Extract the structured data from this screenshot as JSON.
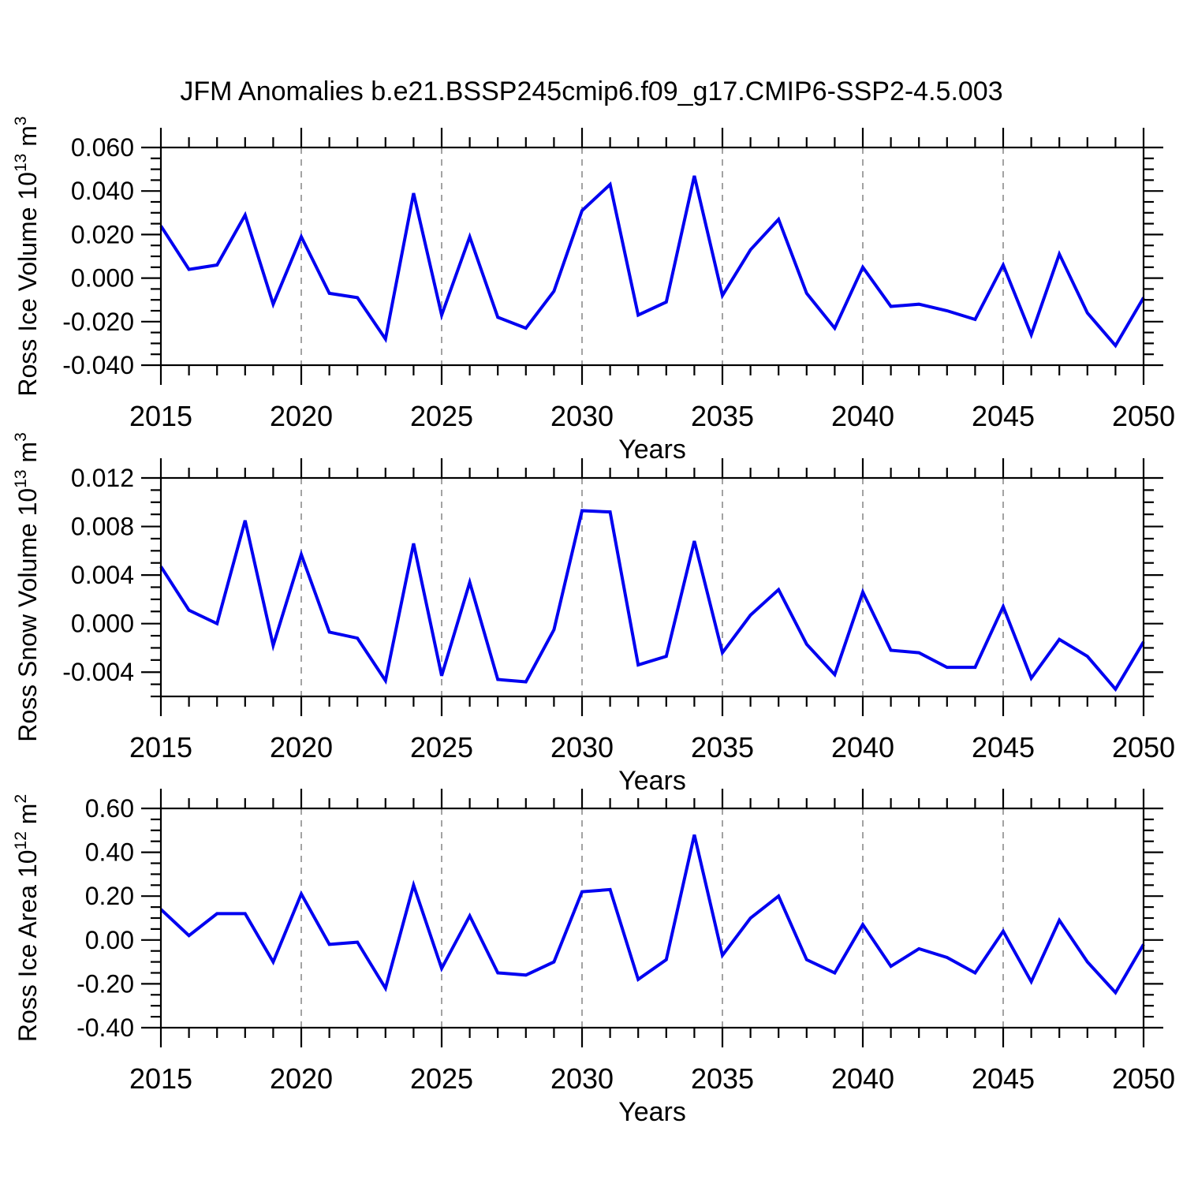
{
  "title": "JFM Anomalies b.e21.BSSP245cmip6.f09_g17.CMIP6-SSP2-4.5.003",
  "figure": {
    "background": "#ffffff",
    "line_color": "#0000f0",
    "axis_color": "#000000",
    "grid_color": "#8c8c8c",
    "text_color": "#000000"
  },
  "xtick_labels": [
    "2015",
    "2020",
    "2025",
    "2030",
    "2035",
    "2040",
    "2045",
    "2050"
  ],
  "chart_data": [
    {
      "type": "line",
      "id": "ross-ice-volume",
      "title": "",
      "xlabel": "Years",
      "ylabel": "Ross Ice Volume 10¹³ m³",
      "ylabel_parts": [
        {
          "text": "Ross Ice Volume 10",
          "sup": false
        },
        {
          "text": "13",
          "sup": true
        },
        {
          "text": " m",
          "sup": false
        },
        {
          "text": "3",
          "sup": true
        }
      ],
      "xlim": [
        2015,
        2050
      ],
      "ylim": [
        -0.04,
        0.06
      ],
      "xtick_major": 5,
      "xtick_minor": 1,
      "ytick_major": 0.02,
      "ytick_minor": 0.005,
      "ytick_labels": [
        "0.060",
        "0.040",
        "0.020",
        "0.000",
        "-0.020",
        "-0.040"
      ],
      "grid_x_dashed": [
        2020,
        2025,
        2030,
        2035,
        2040,
        2045
      ],
      "x": [
        2015,
        2016,
        2017,
        2018,
        2019,
        2020,
        2021,
        2022,
        2023,
        2024,
        2025,
        2026,
        2027,
        2028,
        2029,
        2030,
        2031,
        2032,
        2033,
        2034,
        2035,
        2036,
        2037,
        2038,
        2039,
        2040,
        2041,
        2042,
        2043,
        2044,
        2045,
        2046,
        2047,
        2048,
        2049,
        2050
      ],
      "values": [
        0.024,
        0.004,
        0.006,
        0.029,
        -0.012,
        0.019,
        -0.007,
        -0.009,
        -0.028,
        0.039,
        -0.017,
        0.019,
        -0.018,
        -0.023,
        -0.006,
        0.031,
        0.043,
        -0.017,
        -0.011,
        0.047,
        -0.008,
        0.013,
        0.027,
        -0.007,
        -0.023,
        0.005,
        -0.013,
        -0.012,
        -0.015,
        -0.019,
        0.006,
        -0.026,
        0.011,
        -0.016,
        -0.031,
        -0.009
      ]
    },
    {
      "type": "line",
      "id": "ross-snow-volume",
      "title": "",
      "xlabel": "Years",
      "ylabel": "Ross Snow Volume 10¹³ m³",
      "ylabel_parts": [
        {
          "text": "Ross Snow Volume 10",
          "sup": false
        },
        {
          "text": "13",
          "sup": true
        },
        {
          "text": " m",
          "sup": false
        },
        {
          "text": "3",
          "sup": true
        }
      ],
      "xlim": [
        2015,
        2050
      ],
      "ylim": [
        -0.006,
        0.012
      ],
      "xtick_major": 5,
      "xtick_minor": 1,
      "ytick_major": 0.004,
      "ytick_minor": 0.001,
      "ytick_labels": [
        "0.012",
        "0.008",
        "0.004",
        "0.000",
        "-0.004"
      ],
      "grid_x_dashed": [
        2020,
        2025,
        2030,
        2035,
        2040,
        2045
      ],
      "x": [
        2015,
        2016,
        2017,
        2018,
        2019,
        2020,
        2021,
        2022,
        2023,
        2024,
        2025,
        2026,
        2027,
        2028,
        2029,
        2030,
        2031,
        2032,
        2033,
        2034,
        2035,
        2036,
        2037,
        2038,
        2039,
        2040,
        2041,
        2042,
        2043,
        2044,
        2045,
        2046,
        2047,
        2048,
        2049,
        2050
      ],
      "values": [
        0.0047,
        0.0011,
        0.0,
        0.0085,
        -0.0018,
        0.0057,
        -0.0007,
        -0.0012,
        -0.0047,
        0.0066,
        -0.0043,
        0.0034,
        -0.0046,
        -0.0048,
        -0.0005,
        0.0093,
        0.0092,
        -0.0034,
        -0.0027,
        0.0068,
        -0.0024,
        0.0007,
        0.0028,
        -0.0017,
        -0.0042,
        0.0026,
        -0.0022,
        -0.0024,
        -0.0036,
        -0.0036,
        0.0014,
        -0.0045,
        -0.0013,
        -0.0027,
        -0.0054,
        -0.0015
      ]
    },
    {
      "type": "line",
      "id": "ross-ice-area",
      "title": "",
      "xlabel": "Years",
      "ylabel": "Ross Ice Area 10¹² m²",
      "ylabel_parts": [
        {
          "text": "Ross Ice Area 10",
          "sup": false
        },
        {
          "text": "12",
          "sup": true
        },
        {
          "text": " m",
          "sup": false
        },
        {
          "text": "2",
          "sup": true
        }
      ],
      "xlim": [
        2015,
        2050
      ],
      "ylim": [
        -0.4,
        0.6
      ],
      "xtick_major": 5,
      "xtick_minor": 1,
      "ytick_major": 0.2,
      "ytick_minor": 0.05,
      "ytick_labels": [
        "0.60",
        "0.40",
        "0.20",
        "0.00",
        "-0.20",
        "-0.40"
      ],
      "grid_x_dashed": [
        2020,
        2025,
        2030,
        2035,
        2040,
        2045
      ],
      "x": [
        2015,
        2016,
        2017,
        2018,
        2019,
        2020,
        2021,
        2022,
        2023,
        2024,
        2025,
        2026,
        2027,
        2028,
        2029,
        2030,
        2031,
        2032,
        2033,
        2034,
        2035,
        2036,
        2037,
        2038,
        2039,
        2040,
        2041,
        2042,
        2043,
        2044,
        2045,
        2046,
        2047,
        2048,
        2049,
        2050
      ],
      "values": [
        0.14,
        0.02,
        0.12,
        0.12,
        -0.1,
        0.21,
        -0.02,
        -0.01,
        -0.22,
        0.25,
        -0.13,
        0.11,
        -0.15,
        -0.16,
        -0.1,
        0.22,
        0.23,
        -0.18,
        -0.09,
        0.48,
        -0.07,
        0.1,
        0.2,
        -0.09,
        -0.15,
        0.07,
        -0.12,
        -0.04,
        -0.08,
        -0.15,
        0.04,
        -0.19,
        0.09,
        -0.1,
        -0.24,
        -0.02
      ]
    }
  ]
}
